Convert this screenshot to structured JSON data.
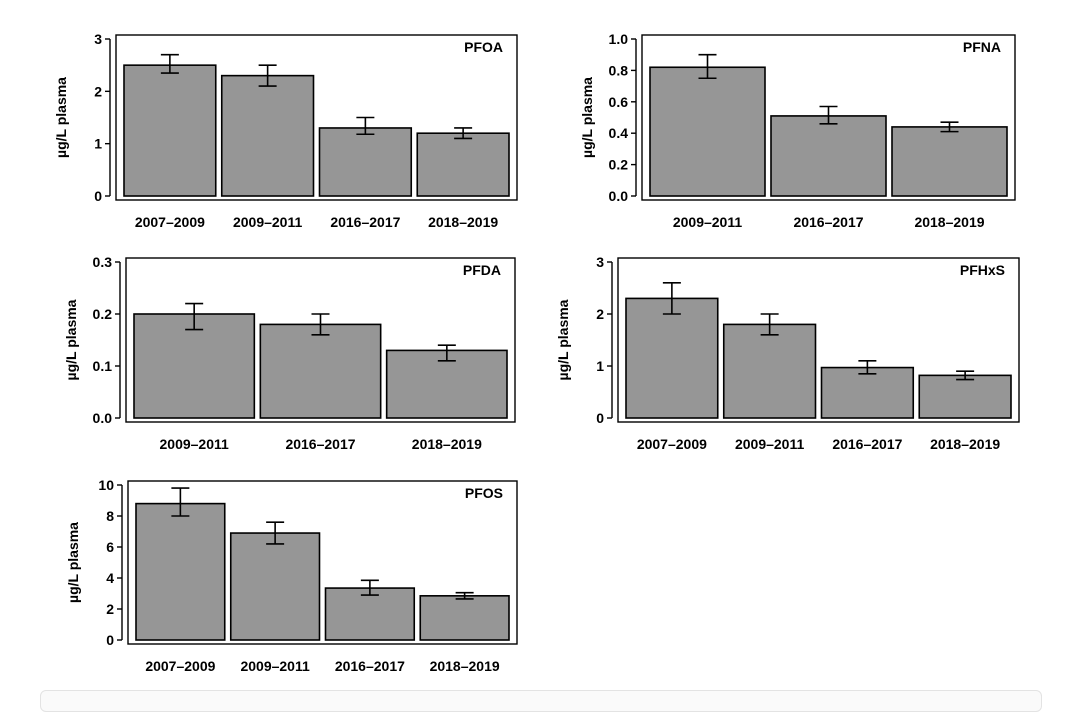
{
  "colors": {
    "bar_fill": "#969696",
    "stroke": "#000000",
    "background": "#ffffff"
  },
  "chart_data": [
    {
      "type": "bar",
      "title": "PFOA",
      "ylabel": "µg/L plasma",
      "xlabel": "",
      "categories": [
        "2007–2009",
        "2009–2011",
        "2016–2017",
        "2018–2019"
      ],
      "values": [
        2.5,
        2.3,
        1.3,
        1.2
      ],
      "error_bars": [
        [
          2.35,
          2.7
        ],
        [
          2.1,
          2.5
        ],
        [
          1.18,
          1.5
        ],
        [
          1.1,
          1.3
        ]
      ],
      "ylim": [
        0,
        3
      ],
      "yticks": [
        "0",
        "1",
        "2",
        "3"
      ],
      "legend": "top-right title",
      "grid": false
    },
    {
      "type": "bar",
      "title": "PFNA",
      "ylabel": "µg/L plasma",
      "xlabel": "",
      "categories": [
        "2009–2011",
        "2016–2017",
        "2018–2019"
      ],
      "values": [
        0.82,
        0.51,
        0.44
      ],
      "error_bars": [
        [
          0.75,
          0.9
        ],
        [
          0.46,
          0.57
        ],
        [
          0.41,
          0.47
        ]
      ],
      "ylim": [
        0,
        1.0
      ],
      "yticks": [
        "0.0",
        "0.2",
        "0.4",
        "0.6",
        "0.8",
        "1.0"
      ],
      "legend": "top-right title",
      "grid": false
    },
    {
      "type": "bar",
      "title": "PFDA",
      "ylabel": "µg/L plasma",
      "xlabel": "",
      "categories": [
        "2009–2011",
        "2016–2017",
        "2018–2019"
      ],
      "values": [
        0.2,
        0.18,
        0.13
      ],
      "error_bars": [
        [
          0.17,
          0.22
        ],
        [
          0.16,
          0.2
        ],
        [
          0.11,
          0.14
        ]
      ],
      "ylim": [
        0,
        0.3
      ],
      "yticks": [
        "0.0",
        "0.1",
        "0.2",
        "0.3"
      ],
      "legend": "top-right title",
      "grid": false
    },
    {
      "type": "bar",
      "title": "PFHxS",
      "ylabel": "µg/L plasma",
      "xlabel": "",
      "categories": [
        "2007–2009",
        "2009–2011",
        "2016–2017",
        "2018–2019"
      ],
      "values": [
        2.3,
        1.8,
        0.97,
        0.82
      ],
      "error_bars": [
        [
          2.0,
          2.6
        ],
        [
          1.6,
          2.0
        ],
        [
          0.85,
          1.1
        ],
        [
          0.74,
          0.9
        ]
      ],
      "ylim": [
        0,
        3
      ],
      "yticks": [
        "0",
        "1",
        "2",
        "3"
      ],
      "legend": "top-right title",
      "grid": false
    },
    {
      "type": "bar",
      "title": "PFOS",
      "ylabel": "µg/L plasma",
      "xlabel": "",
      "categories": [
        "2007–2009",
        "2009–2011",
        "2016–2017",
        "2018–2019"
      ],
      "values": [
        8.8,
        6.9,
        3.35,
        2.85
      ],
      "error_bars": [
        [
          8.0,
          9.8
        ],
        [
          6.2,
          7.6
        ],
        [
          2.9,
          3.85
        ],
        [
          2.65,
          3.05
        ]
      ],
      "ylim": [
        0,
        10
      ],
      "yticks": [
        "0",
        "2",
        "4",
        "6",
        "8",
        "10"
      ],
      "legend": "top-right title",
      "grid": false
    }
  ]
}
